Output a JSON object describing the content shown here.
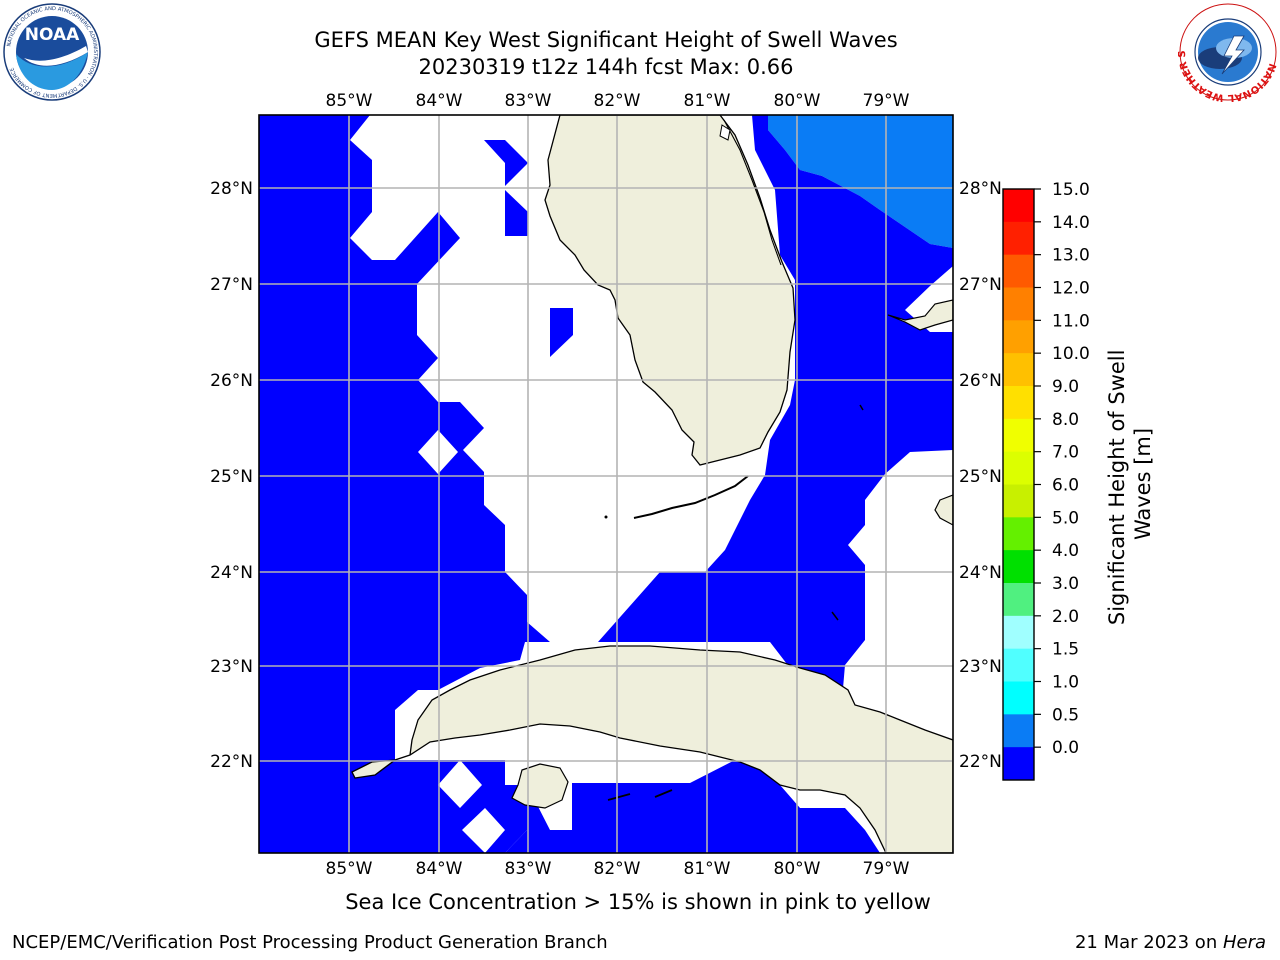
{
  "title": {
    "line1": "GEFS MEAN Key West Significant Height of Swell Waves",
    "line2": "20230319 t12z 144h fcst   Max: 0.66"
  },
  "map": {
    "lon_ticks": [
      "85°W",
      "84°W",
      "83°W",
      "82°W",
      "81°W",
      "80°W",
      "79°W"
    ],
    "lat_ticks": [
      "28°N",
      "27°N",
      "26°N",
      "25°N",
      "24°N",
      "23°N",
      "22°N"
    ],
    "lon_range": [
      -86.0,
      -78.25
    ],
    "lat_range": [
      21.0,
      28.8
    ],
    "colors": {
      "swell_0_05": "#0000ff",
      "swell_05_10": "#0a7cf5",
      "land": "#efefdc",
      "grid": "#b4b4b4"
    }
  },
  "colorbar": {
    "label": "Significant Height of Swell Waves [m]",
    "label_lines": [
      "Significant Height of Swell",
      "Waves [m]"
    ],
    "ticks": [
      "15.0",
      "14.0",
      "13.0",
      "12.0",
      "11.0",
      "10.0",
      "9.0",
      "8.0",
      "7.0",
      "6.0",
      "5.0",
      "4.0",
      "3.0",
      "2.0",
      "1.5",
      "1.0",
      "0.5",
      "0.0"
    ],
    "colors": [
      "#ff0000",
      "#ff2000",
      "#ff5a00",
      "#ff8000",
      "#ffa000",
      "#ffc000",
      "#ffe000",
      "#f0ff00",
      "#dcff00",
      "#c8f000",
      "#64f000",
      "#00e000",
      "#50f080",
      "#a0ffff",
      "#50ffff",
      "#00ffff",
      "#0a7cf5",
      "#0000ff"
    ]
  },
  "footnote": "Sea Ice Concentration > 15% is shown in pink to yellow",
  "credit_left": "NCEP/EMC/Verification Post Processing Product Generation Branch",
  "credit_right_date": "21 Mar 2023 on ",
  "credit_right_host": "Hera",
  "logos": {
    "noaa_text": "NOAA",
    "noaa_ring": "NATIONAL OCEANIC AND ATMOSPHERIC ADMINISTRATION · U.S. DEPARTMENT OF COMMERCE",
    "nws_ring": "NATIONAL WEATHER SERVICE"
  }
}
